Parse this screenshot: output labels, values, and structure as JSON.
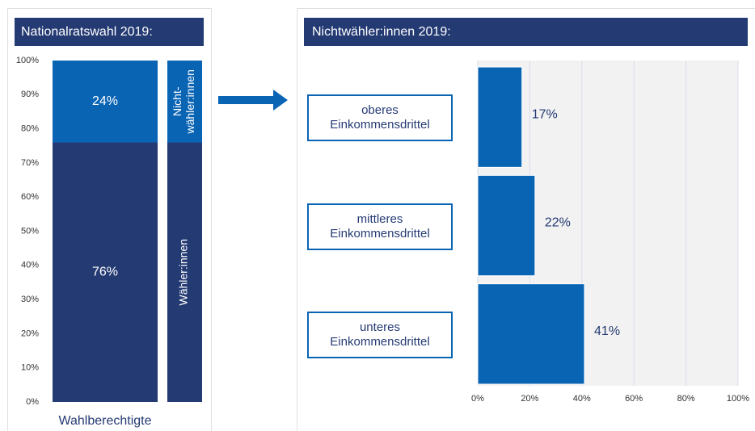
{
  "chart_data": [
    {
      "type": "stacked_bar",
      "title": "Nationalratswahl 2019:",
      "categories": [
        "Wahlberechtigte"
      ],
      "series": [
        {
          "name": "Wähler:innen",
          "color": "#243a73",
          "values": [
            76
          ],
          "value_labels": [
            "76%"
          ]
        },
        {
          "name": "Nicht-wähler:innen",
          "color": "#0a64b4",
          "values": [
            24
          ],
          "value_labels": [
            "24%"
          ]
        }
      ],
      "ylim": [
        0,
        100
      ],
      "yticks": [
        {
          "value": 0,
          "label": "0%"
        },
        {
          "value": 10,
          "label": "10%"
        },
        {
          "value": 20,
          "label": "20%"
        },
        {
          "value": 30,
          "label": "30%"
        },
        {
          "value": 40,
          "label": "40%"
        },
        {
          "value": 50,
          "label": "50%"
        },
        {
          "value": 60,
          "label": "60%"
        },
        {
          "value": 70,
          "label": "70%"
        },
        {
          "value": 80,
          "label": "80%"
        },
        {
          "value": 90,
          "label": "90%"
        },
        {
          "value": 100,
          "label": "100%"
        }
      ]
    },
    {
      "type": "hbar",
      "title": "Nichtwähler:innen 2019:",
      "categories": [
        "oberes Einkommensdrittel",
        "mittleres Einkommensdrittel",
        "unteres Einkommensdrittel"
      ],
      "values": [
        17,
        22,
        41
      ],
      "value_labels": [
        "17%",
        "22%",
        "41%"
      ],
      "color": "#0a64b4",
      "xlim": [
        0,
        100
      ],
      "xticks": [
        {
          "value": 0,
          "label": "0%"
        },
        {
          "value": 20,
          "label": "20%"
        },
        {
          "value": 40,
          "label": "40%"
        },
        {
          "value": 60,
          "label": "60%"
        },
        {
          "value": 80,
          "label": "80%"
        },
        {
          "value": 100,
          "label": "100%"
        }
      ],
      "grid": true
    }
  ]
}
